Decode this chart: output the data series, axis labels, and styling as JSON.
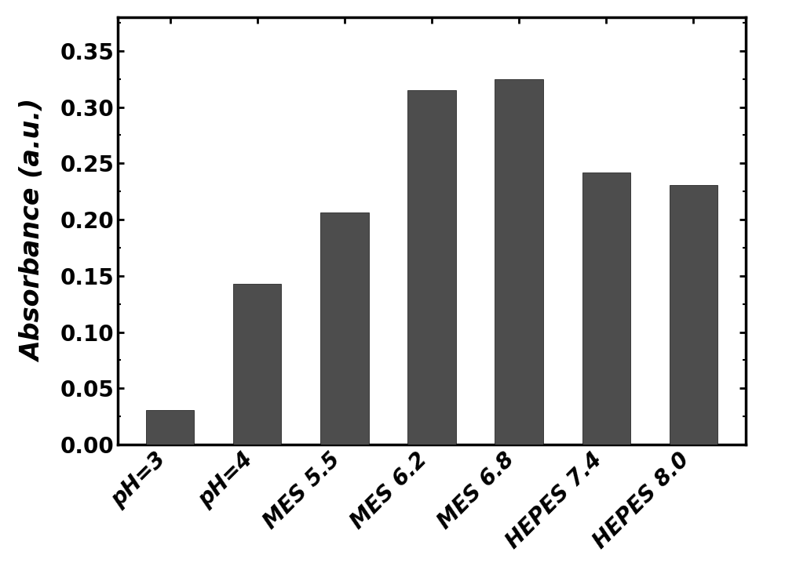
{
  "categories": [
    "pH=3",
    "pH=4",
    "MES 5.5",
    "MES 6.2",
    "MES 6.8",
    "HEPES 7.4",
    "HEPES 8.0"
  ],
  "values": [
    0.031,
    0.143,
    0.206,
    0.315,
    0.325,
    0.242,
    0.231
  ],
  "bar_color": "#4d4d4d",
  "ylabel": "Absorbance (a.u.)",
  "ylim": [
    0,
    0.38
  ],
  "yticks": [
    0.0,
    0.05,
    0.1,
    0.15,
    0.2,
    0.25,
    0.3,
    0.35
  ],
  "background_color": "#ffffff",
  "ylabel_fontsize": 24,
  "tick_fontsize": 20,
  "xtick_fontsize": 20,
  "bar_width": 0.55,
  "edge_color": "#111111",
  "spine_linewidth": 2.5,
  "figsize": [
    10.0,
    7.27
  ],
  "dpi": 100
}
